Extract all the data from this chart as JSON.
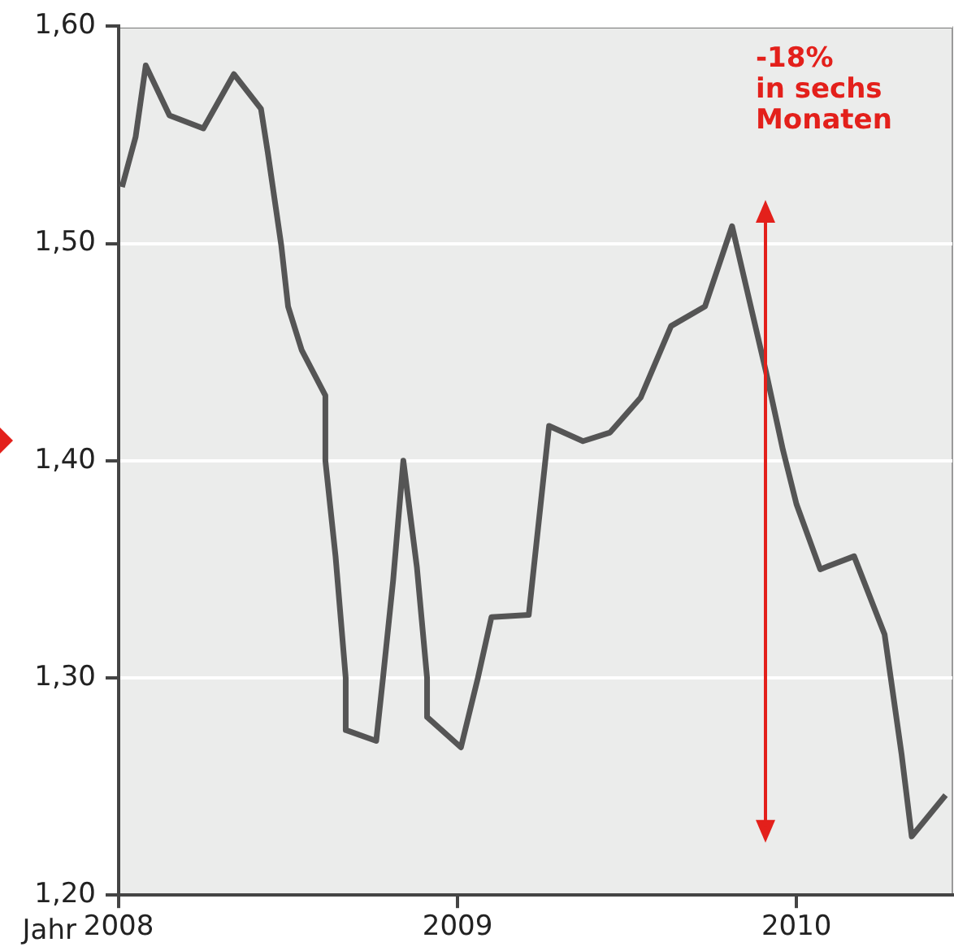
{
  "chart_data": {
    "type": "line",
    "xlabel": "Jahr",
    "x": [
      2008.01,
      2008.05,
      2008.08,
      2008.15,
      2008.25,
      2008.34,
      2008.42,
      2008.44,
      2008.48,
      2008.5,
      2008.54,
      2008.61,
      2008.61,
      2008.64,
      2008.67,
      2008.67,
      2008.76,
      2008.78,
      2008.81,
      2008.84,
      2008.88,
      2008.91,
      2008.91,
      2009.01,
      2009.06,
      2009.1,
      2009.21,
      2009.27,
      2009.37,
      2009.45,
      2009.54,
      2009.63,
      2009.73,
      2009.81,
      2009.91,
      2009.96,
      2010.0,
      2010.07,
      2010.17,
      2010.26,
      2010.31,
      2010.34,
      2010.44
    ],
    "series": [
      {
        "color": "#555555",
        "values": [
          1.526,
          1.549,
          1.582,
          1.559,
          1.553,
          1.578,
          1.562,
          1.542,
          1.499,
          1.471,
          1.451,
          1.43,
          1.4,
          1.356,
          1.3,
          1.276,
          1.271,
          1.3,
          1.345,
          1.4,
          1.351,
          1.3,
          1.282,
          1.268,
          1.3,
          1.328,
          1.329,
          1.416,
          1.409,
          1.413,
          1.429,
          1.462,
          1.471,
          1.508,
          1.441,
          1.405,
          1.38,
          1.35,
          1.356,
          1.32,
          1.265,
          1.227,
          1.246
        ]
      }
    ],
    "xlim": [
      2008,
      2010.46
    ],
    "xticks": [
      2008,
      2009,
      2010
    ],
    "ylim": [
      1.2,
      1.6
    ],
    "yticks": [
      {
        "value": 1.2,
        "label": "1,20"
      },
      {
        "value": 1.3,
        "label": "1,30"
      },
      {
        "value": 1.4,
        "label": "1,40"
      },
      {
        "value": 1.5,
        "label": "1,50"
      },
      {
        "value": 1.6,
        "label": "1,60"
      }
    ],
    "grid": "y",
    "legend": false,
    "marker": "none",
    "line_style": "solid",
    "annotations": [
      "-18%\nin sechs\nMonaten"
    ]
  }
}
